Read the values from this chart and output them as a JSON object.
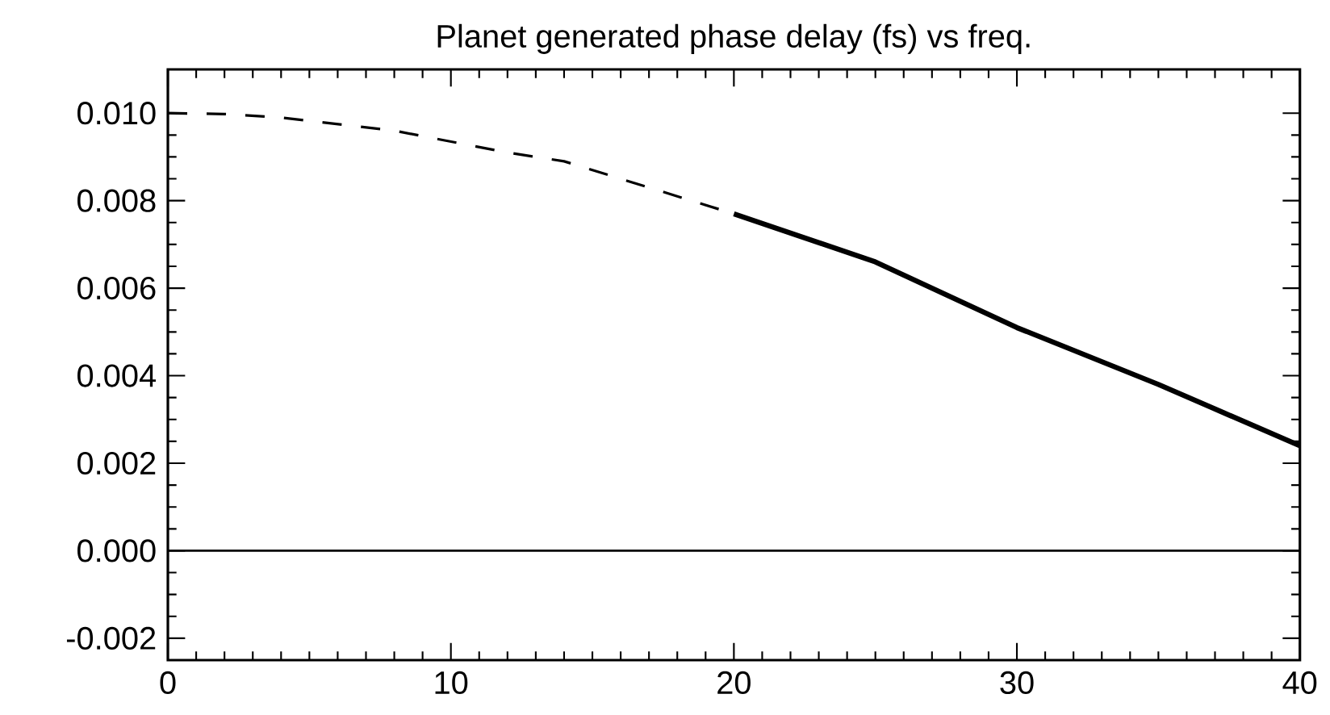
{
  "chart_data": {
    "type": "line",
    "title": "Planet generated phase delay (fs) vs freq.",
    "xlim": [
      0,
      40
    ],
    "xticks": [
      0,
      10,
      20,
      30,
      40
    ],
    "ylim": [
      -0.0025,
      0.011
    ],
    "yticks": [
      {
        "value": -0.002,
        "label": "-0.002"
      },
      {
        "value": 0.0,
        "label": "0.000"
      },
      {
        "value": 0.002,
        "label": "0.002"
      },
      {
        "value": 0.004,
        "label": "0.004"
      },
      {
        "value": 0.006,
        "label": "0.006"
      },
      {
        "value": 0.008,
        "label": "0.008"
      },
      {
        "value": 0.01,
        "label": "0.010"
      }
    ],
    "marker": "none",
    "series": [
      {
        "color": "#000000",
        "line_style": "dashed",
        "x": [
          0,
          2,
          4,
          6,
          8,
          10,
          12,
          14,
          16,
          18,
          20
        ],
        "values": [
          0.01,
          0.00998,
          0.0099,
          0.00975,
          0.0096,
          0.00935,
          0.0091,
          0.0089,
          0.0085,
          0.0081,
          0.0077
        ]
      },
      {
        "color": "#000000",
        "line_style": "solid",
        "x": [
          20,
          25,
          30,
          35,
          40
        ],
        "values": [
          0.0077,
          0.0066,
          0.0051,
          0.0038,
          0.0024
        ]
      }
    ],
    "ref_lines": [
      {
        "axis": "y",
        "value": 0,
        "color": "#000000",
        "line_style": "solid"
      }
    ]
  }
}
